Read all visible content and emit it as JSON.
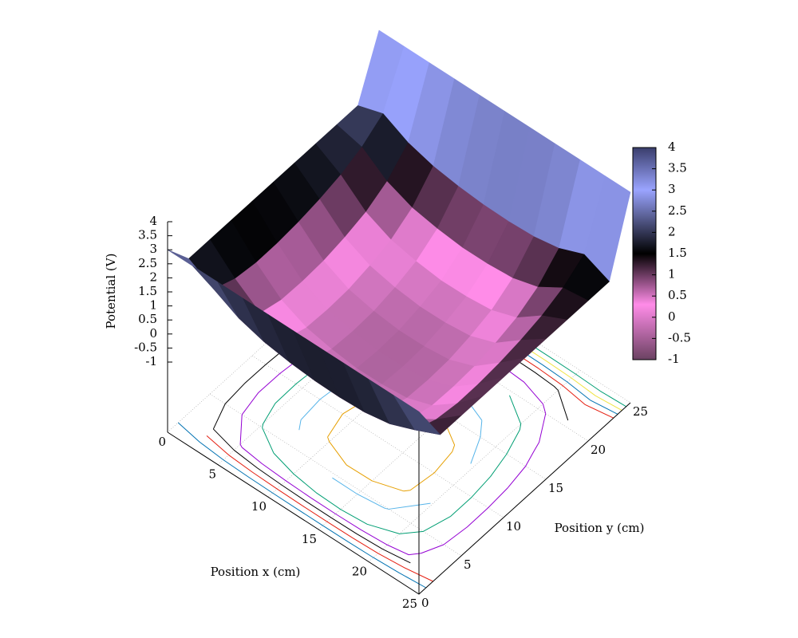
{
  "chart_data": {
    "type": "surface",
    "xlabel": "Position x (cm)",
    "ylabel": "Position y (cm)",
    "zlabel": "Potential (V)",
    "x": [
      0,
      2.5,
      5,
      7.5,
      10,
      12.5,
      15,
      17.5,
      20,
      22.5,
      25
    ],
    "y": [
      0,
      2.5,
      5,
      7.5,
      10,
      12.5,
      15,
      17.5,
      20,
      22.5,
      25
    ],
    "z": [
      [
        3,
        3,
        3,
        3,
        3,
        3,
        3,
        3,
        3,
        3,
        3
      ],
      [
        2,
        1.49,
        1.03,
        0.77,
        0.63,
        0.55,
        0.53,
        0.57,
        0.73,
        1.09,
        1.5
      ],
      [
        2,
        1.18,
        0.53,
        0.17,
        0.0,
        -0.1,
        -0.1,
        -0.03,
        0.23,
        0.78,
        1.5
      ],
      [
        2,
        1.07,
        0.32,
        -0.09,
        -0.28,
        -0.39,
        -0.38,
        -0.29,
        0.02,
        0.67,
        1.5
      ],
      [
        2,
        1.08,
        0.3,
        -0.13,
        -0.33,
        -0.44,
        -0.43,
        -0.33,
        0.0,
        0.68,
        1.5
      ],
      [
        2,
        1.15,
        0.35,
        -0.09,
        -0.29,
        -0.4,
        -0.39,
        -0.29,
        0.05,
        0.75,
        1.5
      ],
      [
        2,
        1.28,
        0.5,
        0.07,
        -0.13,
        -0.24,
        -0.23,
        -0.13,
        0.2,
        0.88,
        1.5
      ],
      [
        2,
        1.47,
        0.72,
        0.31,
        0.12,
        0.01,
        0.02,
        0.11,
        0.42,
        1.07,
        1.5
      ],
      [
        2,
        1.78,
        1.13,
        0.77,
        0.6,
        0.5,
        0.5,
        0.57,
        0.83,
        1.38,
        1.5
      ],
      [
        2,
        2.29,
        1.83,
        1.57,
        1.43,
        1.35,
        1.33,
        1.37,
        1.53,
        1.89,
        1.5
      ],
      [
        4,
        4,
        4,
        4,
        4,
        4,
        4,
        4,
        4,
        4,
        4
      ]
    ],
    "xlim": [
      0,
      25
    ],
    "ylim": [
      0,
      25
    ],
    "zlim": [
      -3.5,
      4
    ],
    "xticks": [
      0,
      5,
      10,
      15,
      20,
      25
    ],
    "yticks": [
      0,
      5,
      10,
      15,
      20,
      25
    ],
    "zticks": [
      -1,
      -0.5,
      0,
      0.5,
      1,
      1.5,
      2,
      2.5,
      3,
      3.5,
      4
    ],
    "cblim": [
      -1,
      4
    ],
    "cbticks": [
      -1,
      -0.5,
      0,
      0.5,
      1,
      1.5,
      2,
      2.5,
      3,
      3.5,
      4
    ],
    "palette": [
      [
        -1,
        "#6b4262"
      ],
      [
        0.3,
        "#ff8ce8"
      ],
      [
        1.5,
        "#000000"
      ],
      [
        3,
        "#9aa4ff"
      ],
      [
        4,
        "#3a3e6c"
      ]
    ],
    "contour_levels": [
      -0.25,
      0,
      0.5,
      1,
      1.5,
      2,
      2.5,
      3,
      3.5
    ],
    "contour_colors": [
      "#e69f00",
      "#56b4e9",
      "#009e73",
      "#9400d3",
      "#000000",
      "#e51e10",
      "#0072b2",
      "#f0e442",
      "#009e73"
    ],
    "grid": true
  }
}
